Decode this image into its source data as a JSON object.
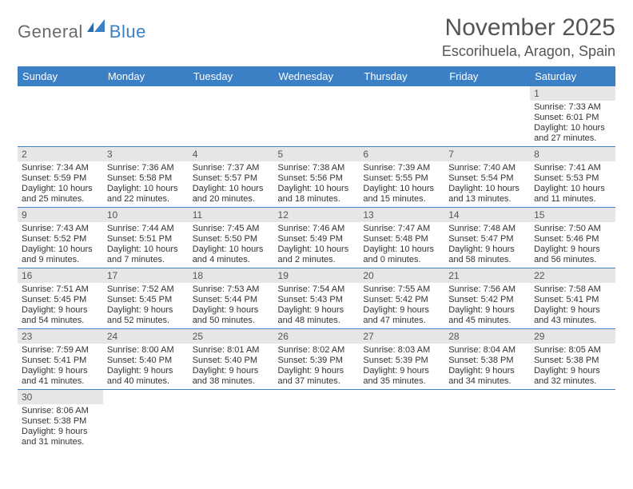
{
  "logo": {
    "text1": "General",
    "text2": "Blue"
  },
  "title": "November 2025",
  "location": "Escorihuela, Aragon, Spain",
  "day_headers": [
    "Sunday",
    "Monday",
    "Tuesday",
    "Wednesday",
    "Thursday",
    "Friday",
    "Saturday"
  ],
  "colors": {
    "header_bg": "#3b7fc4",
    "rule": "#3b7fc4",
    "daynum_bg": "#e6e6e6"
  },
  "weeks": [
    [
      {
        "n": "",
        "sr": "",
        "ss": "",
        "dl": ""
      },
      {
        "n": "",
        "sr": "",
        "ss": "",
        "dl": ""
      },
      {
        "n": "",
        "sr": "",
        "ss": "",
        "dl": ""
      },
      {
        "n": "",
        "sr": "",
        "ss": "",
        "dl": ""
      },
      {
        "n": "",
        "sr": "",
        "ss": "",
        "dl": ""
      },
      {
        "n": "",
        "sr": "",
        "ss": "",
        "dl": ""
      },
      {
        "n": "1",
        "sr": "Sunrise: 7:33 AM",
        "ss": "Sunset: 6:01 PM",
        "dl": "Daylight: 10 hours and 27 minutes."
      }
    ],
    [
      {
        "n": "2",
        "sr": "Sunrise: 7:34 AM",
        "ss": "Sunset: 5:59 PM",
        "dl": "Daylight: 10 hours and 25 minutes."
      },
      {
        "n": "3",
        "sr": "Sunrise: 7:36 AM",
        "ss": "Sunset: 5:58 PM",
        "dl": "Daylight: 10 hours and 22 minutes."
      },
      {
        "n": "4",
        "sr": "Sunrise: 7:37 AM",
        "ss": "Sunset: 5:57 PM",
        "dl": "Daylight: 10 hours and 20 minutes."
      },
      {
        "n": "5",
        "sr": "Sunrise: 7:38 AM",
        "ss": "Sunset: 5:56 PM",
        "dl": "Daylight: 10 hours and 18 minutes."
      },
      {
        "n": "6",
        "sr": "Sunrise: 7:39 AM",
        "ss": "Sunset: 5:55 PM",
        "dl": "Daylight: 10 hours and 15 minutes."
      },
      {
        "n": "7",
        "sr": "Sunrise: 7:40 AM",
        "ss": "Sunset: 5:54 PM",
        "dl": "Daylight: 10 hours and 13 minutes."
      },
      {
        "n": "8",
        "sr": "Sunrise: 7:41 AM",
        "ss": "Sunset: 5:53 PM",
        "dl": "Daylight: 10 hours and 11 minutes."
      }
    ],
    [
      {
        "n": "9",
        "sr": "Sunrise: 7:43 AM",
        "ss": "Sunset: 5:52 PM",
        "dl": "Daylight: 10 hours and 9 minutes."
      },
      {
        "n": "10",
        "sr": "Sunrise: 7:44 AM",
        "ss": "Sunset: 5:51 PM",
        "dl": "Daylight: 10 hours and 7 minutes."
      },
      {
        "n": "11",
        "sr": "Sunrise: 7:45 AM",
        "ss": "Sunset: 5:50 PM",
        "dl": "Daylight: 10 hours and 4 minutes."
      },
      {
        "n": "12",
        "sr": "Sunrise: 7:46 AM",
        "ss": "Sunset: 5:49 PM",
        "dl": "Daylight: 10 hours and 2 minutes."
      },
      {
        "n": "13",
        "sr": "Sunrise: 7:47 AM",
        "ss": "Sunset: 5:48 PM",
        "dl": "Daylight: 10 hours and 0 minutes."
      },
      {
        "n": "14",
        "sr": "Sunrise: 7:48 AM",
        "ss": "Sunset: 5:47 PM",
        "dl": "Daylight: 9 hours and 58 minutes."
      },
      {
        "n": "15",
        "sr": "Sunrise: 7:50 AM",
        "ss": "Sunset: 5:46 PM",
        "dl": "Daylight: 9 hours and 56 minutes."
      }
    ],
    [
      {
        "n": "16",
        "sr": "Sunrise: 7:51 AM",
        "ss": "Sunset: 5:45 PM",
        "dl": "Daylight: 9 hours and 54 minutes."
      },
      {
        "n": "17",
        "sr": "Sunrise: 7:52 AM",
        "ss": "Sunset: 5:45 PM",
        "dl": "Daylight: 9 hours and 52 minutes."
      },
      {
        "n": "18",
        "sr": "Sunrise: 7:53 AM",
        "ss": "Sunset: 5:44 PM",
        "dl": "Daylight: 9 hours and 50 minutes."
      },
      {
        "n": "19",
        "sr": "Sunrise: 7:54 AM",
        "ss": "Sunset: 5:43 PM",
        "dl": "Daylight: 9 hours and 48 minutes."
      },
      {
        "n": "20",
        "sr": "Sunrise: 7:55 AM",
        "ss": "Sunset: 5:42 PM",
        "dl": "Daylight: 9 hours and 47 minutes."
      },
      {
        "n": "21",
        "sr": "Sunrise: 7:56 AM",
        "ss": "Sunset: 5:42 PM",
        "dl": "Daylight: 9 hours and 45 minutes."
      },
      {
        "n": "22",
        "sr": "Sunrise: 7:58 AM",
        "ss": "Sunset: 5:41 PM",
        "dl": "Daylight: 9 hours and 43 minutes."
      }
    ],
    [
      {
        "n": "23",
        "sr": "Sunrise: 7:59 AM",
        "ss": "Sunset: 5:41 PM",
        "dl": "Daylight: 9 hours and 41 minutes."
      },
      {
        "n": "24",
        "sr": "Sunrise: 8:00 AM",
        "ss": "Sunset: 5:40 PM",
        "dl": "Daylight: 9 hours and 40 minutes."
      },
      {
        "n": "25",
        "sr": "Sunrise: 8:01 AM",
        "ss": "Sunset: 5:40 PM",
        "dl": "Daylight: 9 hours and 38 minutes."
      },
      {
        "n": "26",
        "sr": "Sunrise: 8:02 AM",
        "ss": "Sunset: 5:39 PM",
        "dl": "Daylight: 9 hours and 37 minutes."
      },
      {
        "n": "27",
        "sr": "Sunrise: 8:03 AM",
        "ss": "Sunset: 5:39 PM",
        "dl": "Daylight: 9 hours and 35 minutes."
      },
      {
        "n": "28",
        "sr": "Sunrise: 8:04 AM",
        "ss": "Sunset: 5:38 PM",
        "dl": "Daylight: 9 hours and 34 minutes."
      },
      {
        "n": "29",
        "sr": "Sunrise: 8:05 AM",
        "ss": "Sunset: 5:38 PM",
        "dl": "Daylight: 9 hours and 32 minutes."
      }
    ],
    [
      {
        "n": "30",
        "sr": "Sunrise: 8:06 AM",
        "ss": "Sunset: 5:38 PM",
        "dl": "Daylight: 9 hours and 31 minutes."
      },
      {
        "n": "",
        "sr": "",
        "ss": "",
        "dl": ""
      },
      {
        "n": "",
        "sr": "",
        "ss": "",
        "dl": ""
      },
      {
        "n": "",
        "sr": "",
        "ss": "",
        "dl": ""
      },
      {
        "n": "",
        "sr": "",
        "ss": "",
        "dl": ""
      },
      {
        "n": "",
        "sr": "",
        "ss": "",
        "dl": ""
      },
      {
        "n": "",
        "sr": "",
        "ss": "",
        "dl": ""
      }
    ]
  ]
}
